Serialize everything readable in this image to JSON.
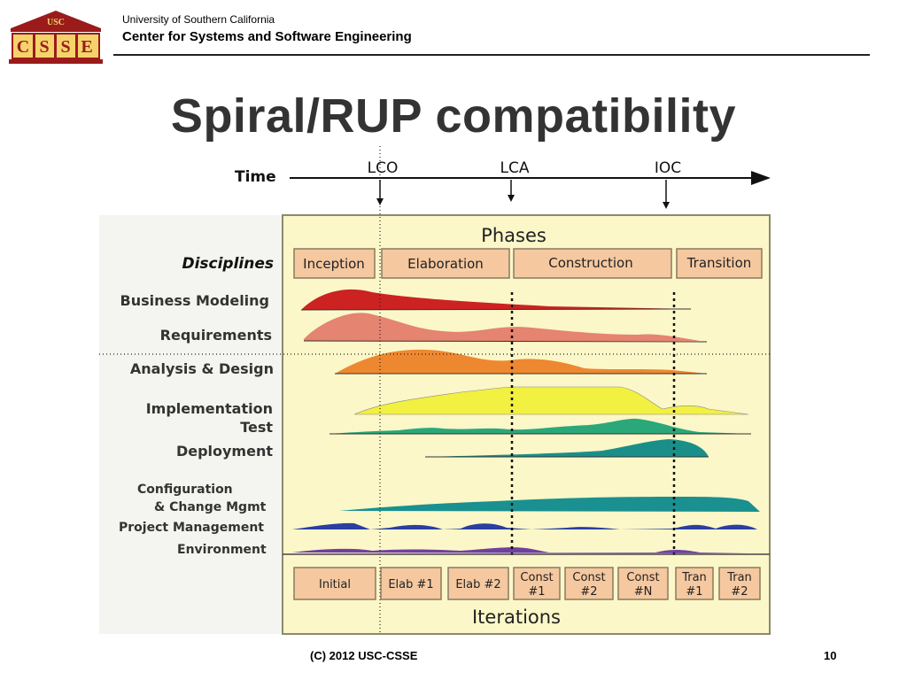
{
  "header": {
    "logo_top": "USC",
    "logo_letters": [
      "C",
      "S",
      "S",
      "E"
    ],
    "org": "University of Southern California",
    "center": "Center for Systems and Software Engineering"
  },
  "title": "Spiral/RUP compatibility",
  "diagram": {
    "time_label": "Time",
    "milestones": [
      "LCO",
      "LCA",
      "IOC"
    ],
    "phases_title": "Phases",
    "disciplines_title": "Disciplines",
    "phases": [
      "Inception",
      "Elaboration",
      "Construction",
      "Transition"
    ],
    "disciplines": [
      {
        "label": "Business Modeling",
        "color": "#cc2222"
      },
      {
        "label": "Requirements",
        "color": "#e07060"
      },
      {
        "label": "Analysis & Design",
        "color": "#ee8830"
      },
      {
        "label": "Implementation",
        "color": "#f2f040"
      },
      {
        "label": "Test",
        "color": "#2aa87a"
      },
      {
        "label": "Deployment",
        "color": "#1a8f8a"
      },
      {
        "label_line1": "Configuration",
        "label_line2": "& Change Mgmt",
        "color": "#1a9090"
      },
      {
        "label": "Project Management",
        "color": "#2a3fa0"
      },
      {
        "label": "Environment",
        "color": "#7040a0"
      }
    ],
    "iterations_title": "Iterations",
    "iterations": [
      [
        "Initial"
      ],
      [
        "Elab #1"
      ],
      [
        "Elab #2"
      ],
      [
        "Const",
        "#1"
      ],
      [
        "Const",
        "#2"
      ],
      [
        "Const",
        "#N"
      ],
      [
        "Tran",
        "#1"
      ],
      [
        "Tran",
        "#2"
      ]
    ]
  },
  "footer": {
    "copyright": "(C) 2012 USC-CSSE",
    "page_number": "10"
  }
}
